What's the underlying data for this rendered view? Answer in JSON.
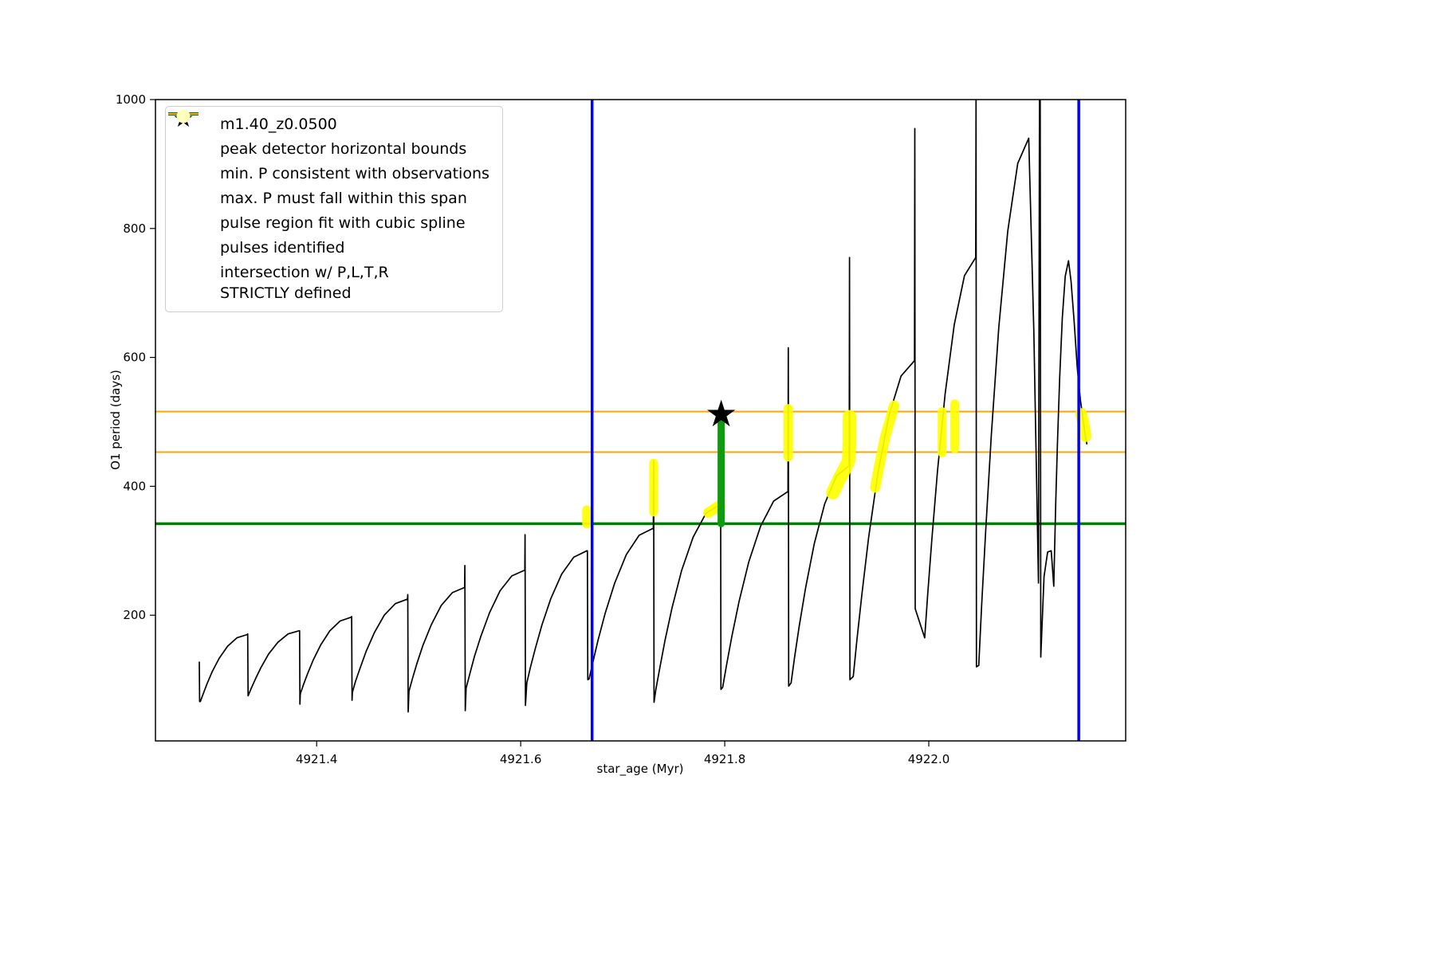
{
  "figure": {
    "background": "#ffffff"
  },
  "chart_data": {
    "type": "line",
    "title": "",
    "xlabel": "star_age (Myr)",
    "ylabel": "O1 period (days)",
    "xlim": [
      4921.242,
      4922.193
    ],
    "ylim": [
      5,
      1000
    ],
    "grid": false,
    "legend_position": "upper left",
    "xticks": [
      {
        "v": 4921.4,
        "label": "4921.4"
      },
      {
        "v": 4921.6,
        "label": "4921.6"
      },
      {
        "v": 4921.8,
        "label": "4921.8"
      },
      {
        "v": 4922.0,
        "label": "4922.0"
      }
    ],
    "yticks": [
      {
        "v": 200,
        "label": "200"
      },
      {
        "v": 400,
        "label": "400"
      },
      {
        "v": 600,
        "label": "600"
      },
      {
        "v": 800,
        "label": "800"
      },
      {
        "v": 1000,
        "label": "1000"
      }
    ],
    "colors": {
      "black": "#000000",
      "blue": "#0000ff",
      "green": "#008000",
      "bar_green": "#0f9b0f",
      "orange": "#ffa500",
      "yellow": "#ffff00",
      "legend_yellow": "#ffffbb",
      "lightgreen": "#90ee90",
      "red": "#ff0000"
    },
    "icons": {
      "star": "★"
    },
    "legend": [
      {
        "label": "m1.40_z0.0500",
        "marker": "line-dot"
      },
      {
        "label": "peak detector horizontal bounds",
        "marker": "thick-line-blue"
      },
      {
        "label": "min. P consistent with observations",
        "marker": "thick-line-green"
      },
      {
        "label": "max. P must fall within this span",
        "marker": "line-orange"
      },
      {
        "label": "pulse region fit with cubic spline",
        "marker": "dot-lightgreen"
      },
      {
        "label": "pulses identified",
        "marker": "red-star"
      },
      {
        "label": "intersection w/ P,L,T,R\nSTRICTLY defined",
        "marker": "dot-paleyellow"
      }
    ],
    "peak_detector_bounds_x": [
      4921.67,
      4922.147
    ],
    "min_p_line_y": 342,
    "max_p_span_y": [
      453,
      516
    ],
    "pulse_fit_bar": {
      "x": 4921.7965,
      "y": [
        342,
        502
      ]
    },
    "pulses": [
      {
        "x": 4921.7965,
        "y": 513
      }
    ],
    "intersections": [
      {
        "w": 12,
        "pts": [
          [
            4921.665,
            342
          ],
          [
            4921.665,
            363
          ]
        ]
      },
      {
        "w": 11,
        "pts": [
          [
            4921.7303,
            360
          ],
          [
            4921.7303,
            436
          ]
        ]
      },
      {
        "w": 13,
        "pts": [
          [
            4921.784,
            359
          ],
          [
            4921.7955,
            371
          ]
        ]
      },
      {
        "w": 12,
        "pts": [
          [
            4921.8623,
            446
          ],
          [
            4921.8623,
            520
          ]
        ]
      },
      {
        "w": 17,
        "pts": [
          [
            4921.906,
            390
          ],
          [
            4921.9125,
            412
          ],
          [
            4921.918,
            428
          ],
          [
            4921.9215,
            440
          ],
          [
            4921.9223,
            470
          ],
          [
            4921.9223,
            508
          ]
        ]
      },
      {
        "w": 13,
        "pts": [
          [
            4921.9475,
            398
          ],
          [
            4921.9525,
            440
          ],
          [
            4921.9575,
            478
          ],
          [
            4921.962,
            502
          ],
          [
            4921.966,
            525
          ]
        ]
      },
      {
        "w": 11,
        "pts": [
          [
            4922.013,
            452
          ],
          [
            4922.013,
            516
          ]
        ]
      },
      {
        "w": 11,
        "pts": [
          [
            4922.0255,
            458
          ],
          [
            4922.0255,
            528
          ]
        ]
      },
      {
        "w": 15,
        "pts": [
          [
            4922.1495,
            512
          ],
          [
            4922.1515,
            498
          ],
          [
            4922.1535,
            478
          ]
        ]
      }
    ],
    "main_series": {
      "name": "m1.40_z0.0500",
      "points": [
        [
          4921.285,
          128
        ],
        [
          4921.2853,
          66
        ],
        [
          4921.286,
          66
        ],
        [
          4921.2888,
          78
        ],
        [
          4921.2924,
          93
        ],
        [
          4921.2975,
          112
        ],
        [
          4921.3044,
          133
        ],
        [
          4921.3127,
          152
        ],
        [
          4921.3219,
          165
        ],
        [
          4921.332,
          170
        ],
        [
          4921.3324,
          171
        ],
        [
          4921.3328,
          75
        ],
        [
          4921.336,
          87
        ],
        [
          4921.34,
          101
        ],
        [
          4921.3455,
          119
        ],
        [
          4921.353,
          140
        ],
        [
          4921.362,
          158
        ],
        [
          4921.372,
          171
        ],
        [
          4921.383,
          176
        ],
        [
          4921.3833,
          176
        ],
        [
          4921.3836,
          62
        ],
        [
          4921.384,
          78
        ],
        [
          4921.387,
          92
        ],
        [
          4921.391,
          109
        ],
        [
          4921.3965,
          130
        ],
        [
          4921.404,
          154
        ],
        [
          4921.413,
          176
        ],
        [
          4921.423,
          191
        ],
        [
          4921.434,
          197
        ],
        [
          4921.4343,
          198
        ],
        [
          4921.4347,
          68
        ],
        [
          4921.435,
          80
        ],
        [
          4921.438,
          97
        ],
        [
          4921.4426,
          118
        ],
        [
          4921.4485,
          144
        ],
        [
          4921.4566,
          173
        ],
        [
          4921.4663,
          200
        ],
        [
          4921.4771,
          218
        ],
        [
          4921.489,
          225
        ],
        [
          4921.4893,
          232
        ],
        [
          4921.4897,
          50
        ],
        [
          4921.4905,
          82
        ],
        [
          4921.4938,
          101
        ],
        [
          4921.4981,
          124
        ],
        [
          4921.5041,
          153
        ],
        [
          4921.5123,
          185
        ],
        [
          4921.5221,
          215
        ],
        [
          4921.533,
          235
        ],
        [
          4921.545,
          243
        ],
        [
          4921.5453,
          277
        ],
        [
          4921.5457,
          52
        ],
        [
          4921.5465,
          87
        ],
        [
          4921.55,
          108
        ],
        [
          4921.5545,
          135
        ],
        [
          4921.5609,
          167
        ],
        [
          4921.5695,
          204
        ],
        [
          4921.5798,
          238
        ],
        [
          4921.5913,
          261
        ],
        [
          4921.604,
          270
        ],
        [
          4921.6043,
          325
        ],
        [
          4921.6047,
          60
        ],
        [
          4921.606,
          95
        ],
        [
          4921.6095,
          119
        ],
        [
          4921.6143,
          148
        ],
        [
          4921.6208,
          185
        ],
        [
          4921.6296,
          226
        ],
        [
          4921.6402,
          264
        ],
        [
          4921.652,
          290
        ],
        [
          4921.665,
          300
        ],
        [
          4921.6654,
          300
        ],
        [
          4921.6658,
          100
        ],
        [
          4921.667,
          101
        ],
        [
          4921.6708,
          127
        ],
        [
          4921.6758,
          161
        ],
        [
          4921.6828,
          203
        ],
        [
          4921.6922,
          250
        ],
        [
          4921.7035,
          294
        ],
        [
          4921.7161,
          324
        ],
        [
          4921.73,
          335
        ],
        [
          4921.7303,
          440
        ],
        [
          4921.7307,
          65
        ],
        [
          4921.7325,
          85
        ],
        [
          4921.7363,
          118
        ],
        [
          4921.7413,
          160
        ],
        [
          4921.7483,
          211
        ],
        [
          4921.7577,
          269
        ],
        [
          4921.769,
          321
        ],
        [
          4921.7816,
          358
        ],
        [
          4921.7955,
          372
        ],
        [
          4921.7959,
          512
        ],
        [
          4921.7963,
          85
        ],
        [
          4921.798,
          88
        ],
        [
          4921.8018,
          123
        ],
        [
          4921.807,
          167
        ],
        [
          4921.814,
          221
        ],
        [
          4921.8236,
          283
        ],
        [
          4921.8351,
          338
        ],
        [
          4921.8479,
          377
        ],
        [
          4921.862,
          392
        ],
        [
          4921.8623,
          615
        ],
        [
          4921.8627,
          90
        ],
        [
          4921.865,
          95
        ],
        [
          4921.8684,
          134
        ],
        [
          4921.873,
          183
        ],
        [
          4921.8793,
          243
        ],
        [
          4921.8878,
          311
        ],
        [
          4921.898,
          373
        ],
        [
          4921.9095,
          416
        ],
        [
          4921.922,
          432
        ],
        [
          4921.9223,
          755
        ],
        [
          4921.9227,
          100
        ],
        [
          4921.926,
          105
        ],
        [
          4921.9296,
          162
        ],
        [
          4921.9344,
          232
        ],
        [
          4921.941,
          320
        ],
        [
          4921.95,
          419
        ],
        [
          4921.9608,
          509
        ],
        [
          4921.9728,
          571
        ],
        [
          4921.986,
          595
        ],
        [
          4921.9863,
          955
        ],
        [
          4921.9867,
          210
        ],
        [
          4921.996,
          165
        ],
        [
          4921.999,
          233
        ],
        [
          4922.003,
          318
        ],
        [
          4922.0085,
          423
        ],
        [
          4922.016,
          543
        ],
        [
          4922.025,
          651
        ],
        [
          4922.035,
          727
        ],
        [
          4922.046,
          755
        ],
        [
          4922.0463,
          1005
        ],
        [
          4922.0467,
          120
        ],
        [
          4922.049,
          122
        ],
        [
          4922.0519,
          217
        ],
        [
          4922.0559,
          335
        ],
        [
          4922.0613,
          480
        ],
        [
          4922.0686,
          646
        ],
        [
          4922.0774,
          796
        ],
        [
          4922.0872,
          901
        ],
        [
          4922.098,
          940
        ],
        [
          4922.103,
          640
        ],
        [
          4922.106,
          380
        ],
        [
          4922.1075,
          250
        ],
        [
          4922.1085,
          1005
        ],
        [
          4922.1092,
          1005
        ],
        [
          4922.1098,
          135
        ],
        [
          4922.113,
          260
        ],
        [
          4922.1165,
          298
        ],
        [
          4922.12,
          300
        ],
        [
          4922.1225,
          245
        ],
        [
          4922.1234,
          304
        ],
        [
          4922.1245,
          376
        ],
        [
          4922.1261,
          466
        ],
        [
          4922.1283,
          568
        ],
        [
          4922.1309,
          661
        ],
        [
          4922.1338,
          726
        ],
        [
          4922.137,
          750
        ],
        [
          4922.1395,
          718
        ],
        [
          4922.1425,
          655
        ],
        [
          4922.1455,
          585
        ],
        [
          4922.1485,
          535
        ],
        [
          4922.1515,
          500
        ],
        [
          4922.1535,
          478
        ],
        [
          4922.155,
          465
        ]
      ]
    }
  }
}
